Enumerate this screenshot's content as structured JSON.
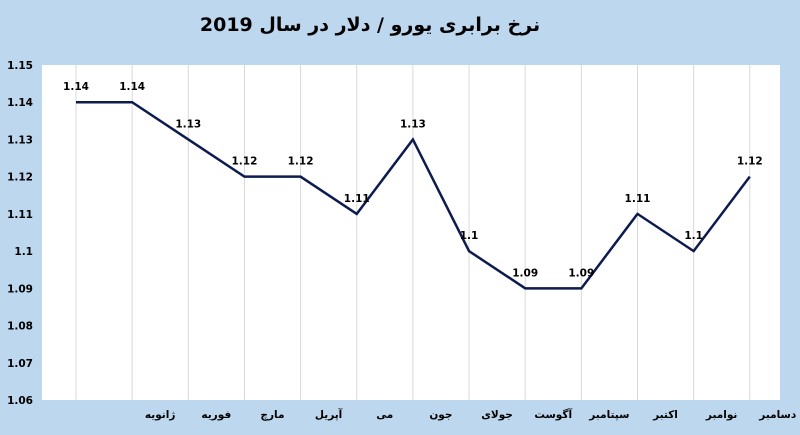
{
  "chart_data": {
    "type": "line",
    "title": "نرخ برابری یورو / دلار در سال 2019",
    "categories": [
      "",
      "ژانویه",
      "فوریه",
      "مارچ",
      "آپریل",
      "می",
      "جون",
      "جولای",
      "آگوست",
      "سپتامبر",
      "اکتبر",
      "نوامبر",
      "دسامبر"
    ],
    "values": [
      1.14,
      1.14,
      1.13,
      1.12,
      1.12,
      1.11,
      1.13,
      1.1,
      1.09,
      1.09,
      1.11,
      1.1,
      1.12
    ],
    "data_labels": [
      "1.14",
      "1.14",
      "1.13",
      "1.12",
      "1.12",
      "1.11",
      "1.13",
      "1.1",
      "1.09",
      "1.09",
      "1.11",
      "1.1",
      "1.12"
    ],
    "y_tick_labels": [
      "1.06",
      "1.07",
      "1.08",
      "1.09",
      "1.1",
      "1.11",
      "1.12",
      "1.13",
      "1.14",
      "1.15"
    ],
    "ylim": [
      1.06,
      1.15
    ],
    "xlabel": "",
    "ylabel": "",
    "grid": "vertical",
    "line_color": "#0d1b4f",
    "background_color": "#bdd7ee",
    "plot_color": "#ffffff"
  }
}
